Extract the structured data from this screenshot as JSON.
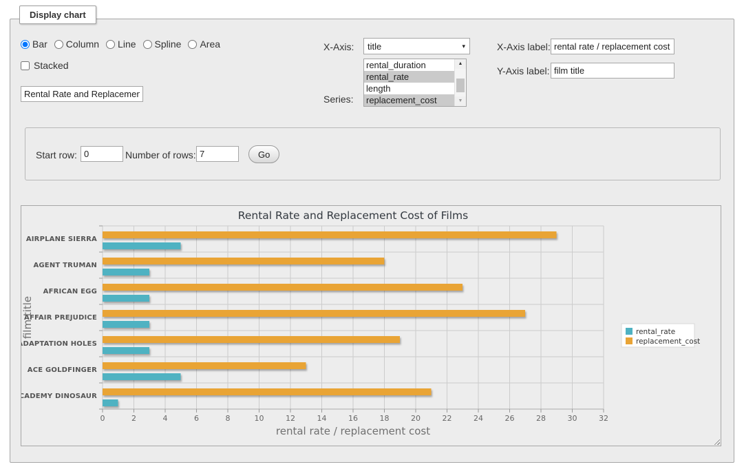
{
  "panel": {
    "legend": "Display chart"
  },
  "controls": {
    "chart_type": {
      "options": [
        "Bar",
        "Column",
        "Line",
        "Spline",
        "Area"
      ],
      "selected": "Bar"
    },
    "stacked": {
      "label": "Stacked",
      "checked": false
    },
    "chart_title_input": {
      "value": "Rental Rate and Replacement Cost of Films"
    },
    "x_axis": {
      "label": "X-Axis:",
      "selected": "title"
    },
    "series": {
      "label": "Series:",
      "options": [
        {
          "label": "rental_duration",
          "selected": false
        },
        {
          "label": "rental_rate",
          "selected": true
        },
        {
          "label": "length",
          "selected": false
        },
        {
          "label": "replacement_cost",
          "selected": true
        }
      ]
    },
    "x_axis_label": {
      "label": "X-Axis label:",
      "value": "rental rate / replacement cost"
    },
    "y_axis_label": {
      "label": "Y-Axis label:",
      "value": "film title"
    }
  },
  "row_controls": {
    "start_row": {
      "label": "Start row:",
      "value": "0"
    },
    "num_rows": {
      "label": "Number of rows:",
      "value": "7"
    },
    "go_button": "Go"
  },
  "icons": {
    "chevron_down": "▾",
    "scroll_up": "▲",
    "scroll_down": "▼"
  },
  "ui_colors": {
    "panel_bg": "#ececec",
    "selection_bg": "#cacaca",
    "grid": "#cccccc"
  },
  "chart_data": {
    "type": "bar",
    "title": "Rental Rate and Replacement Cost of Films",
    "categories": [
      "AIRPLANE SIERRA",
      "AGENT TRUMAN",
      "AFRICAN EGG",
      "AFFAIR PREJUDICE",
      "ADAPTATION HOLES",
      "ACE GOLDFINGER",
      "ACADEMY DINOSAUR"
    ],
    "series": [
      {
        "name": "rental_rate",
        "color": "#4FB2C2",
        "values": [
          4.99,
          2.99,
          2.99,
          2.99,
          2.99,
          4.99,
          0.99
        ]
      },
      {
        "name": "replacement_cost",
        "color": "#E9A436",
        "values": [
          28.99,
          17.99,
          22.99,
          26.99,
          18.99,
          12.99,
          20.99
        ]
      }
    ],
    "bar_order_in_group": [
      "replacement_cost",
      "rental_rate"
    ],
    "xlabel": "rental rate / replacement cost",
    "ylabel": "film title",
    "xlim": [
      0,
      32
    ],
    "x_tick_step": 2,
    "grid": true,
    "legend_position": "right"
  }
}
